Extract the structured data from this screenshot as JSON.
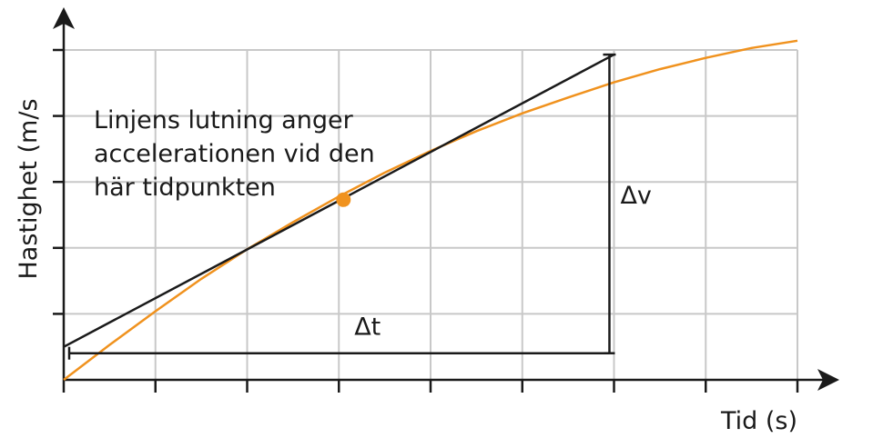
{
  "chart_data": {
    "type": "line",
    "xlabel": "Tid  (s)",
    "ylabel": "Hastighet  (m/s",
    "xlim": [
      0,
      8
    ],
    "ylim": [
      0,
      5
    ],
    "grid": true,
    "x_ticks": 8,
    "y_ticks": 5,
    "series": [
      {
        "type": "curve",
        "color": "#f0921e",
        "x": [
          0,
          0.5,
          1,
          1.5,
          2,
          2.5,
          3,
          3.5,
          4,
          4.5,
          5,
          5.5,
          6,
          6.5,
          7,
          7.5,
          8
        ],
        "y": [
          0,
          0.53,
          1.04,
          1.53,
          1.98,
          2.39,
          2.78,
          3.14,
          3.47,
          3.77,
          4.04,
          4.28,
          4.51,
          4.71,
          4.88,
          5.03,
          5.14
        ]
      },
      {
        "type": "tangent",
        "color": "#1a1a1a",
        "x": [
          0,
          6
        ],
        "y": [
          0.5,
          4.93
        ]
      }
    ],
    "point": {
      "x": 3.05,
      "y": 2.73,
      "color": "#f0921e"
    },
    "delta_t": {
      "x": [
        0,
        5.95
      ],
      "y": 0.5,
      "label": "Δt"
    },
    "delta_v": {
      "x": 5.95,
      "y": [
        0.5,
        4.93
      ],
      "label": "Δv"
    },
    "annotation": [
      "Linjens lutning anger",
      "accelerationen vid den",
      "här tidpunkten"
    ]
  }
}
